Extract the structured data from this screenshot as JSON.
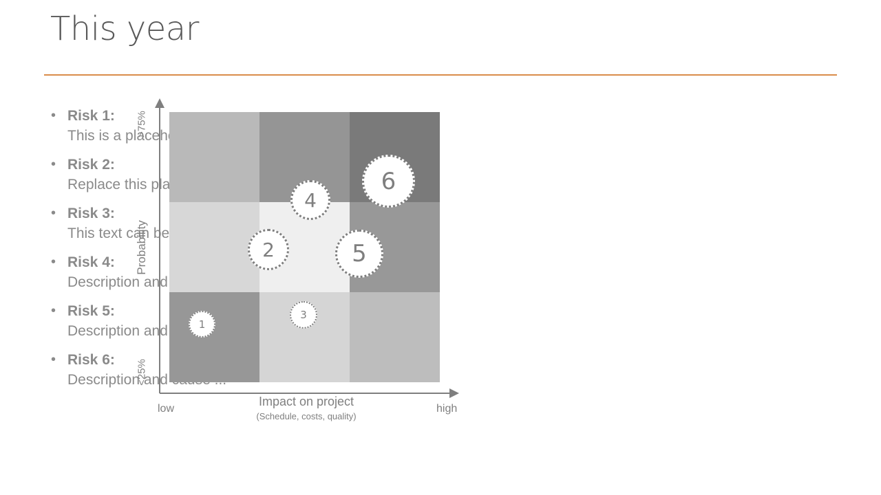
{
  "slide": {
    "title": "This year"
  },
  "risks": [
    {
      "label": "Risk 1:",
      "desc": "This is a placeholder text"
    },
    {
      "label": "Risk 2:",
      "desc": "Replace this placeholder text"
    },
    {
      "label": "Risk 3:",
      "desc": "This text can be replaced"
    },
    {
      "label": "Risk 4:",
      "desc": "Description and cause ..."
    },
    {
      "label": "Risk 5:",
      "desc": "Description and cause ..."
    },
    {
      "label": "Risk 6:",
      "desc": "Description and cause ..."
    }
  ],
  "bullet_char": "•",
  "matrix": {
    "y_axis_label": "Probability",
    "y_top_tick": ">75%",
    "y_bottom_tick": "<25%",
    "x_axis_label": "Impact on project",
    "x_axis_sublabel": "(Schedule, costs, quality)",
    "x_low": "low",
    "x_high": "high",
    "cell_colors": [
      [
        "#b9b9b9",
        "#959595",
        "#7a7a7a"
      ],
      [
        "#d7d7d7",
        "#efefef",
        "#989898"
      ],
      [
        "#979797",
        "#d5d5d5",
        "#bdbdbd"
      ]
    ],
    "bubbles": [
      {
        "id": "1",
        "impact": "low",
        "probability": "low"
      },
      {
        "id": "2",
        "impact": "medium",
        "probability": "medium"
      },
      {
        "id": "3",
        "impact": "medium",
        "probability": "low"
      },
      {
        "id": "4",
        "impact": "medium",
        "probability": "medium-high"
      },
      {
        "id": "5",
        "impact": "high",
        "probability": "medium"
      },
      {
        "id": "6",
        "impact": "high",
        "probability": "high"
      }
    ]
  }
}
